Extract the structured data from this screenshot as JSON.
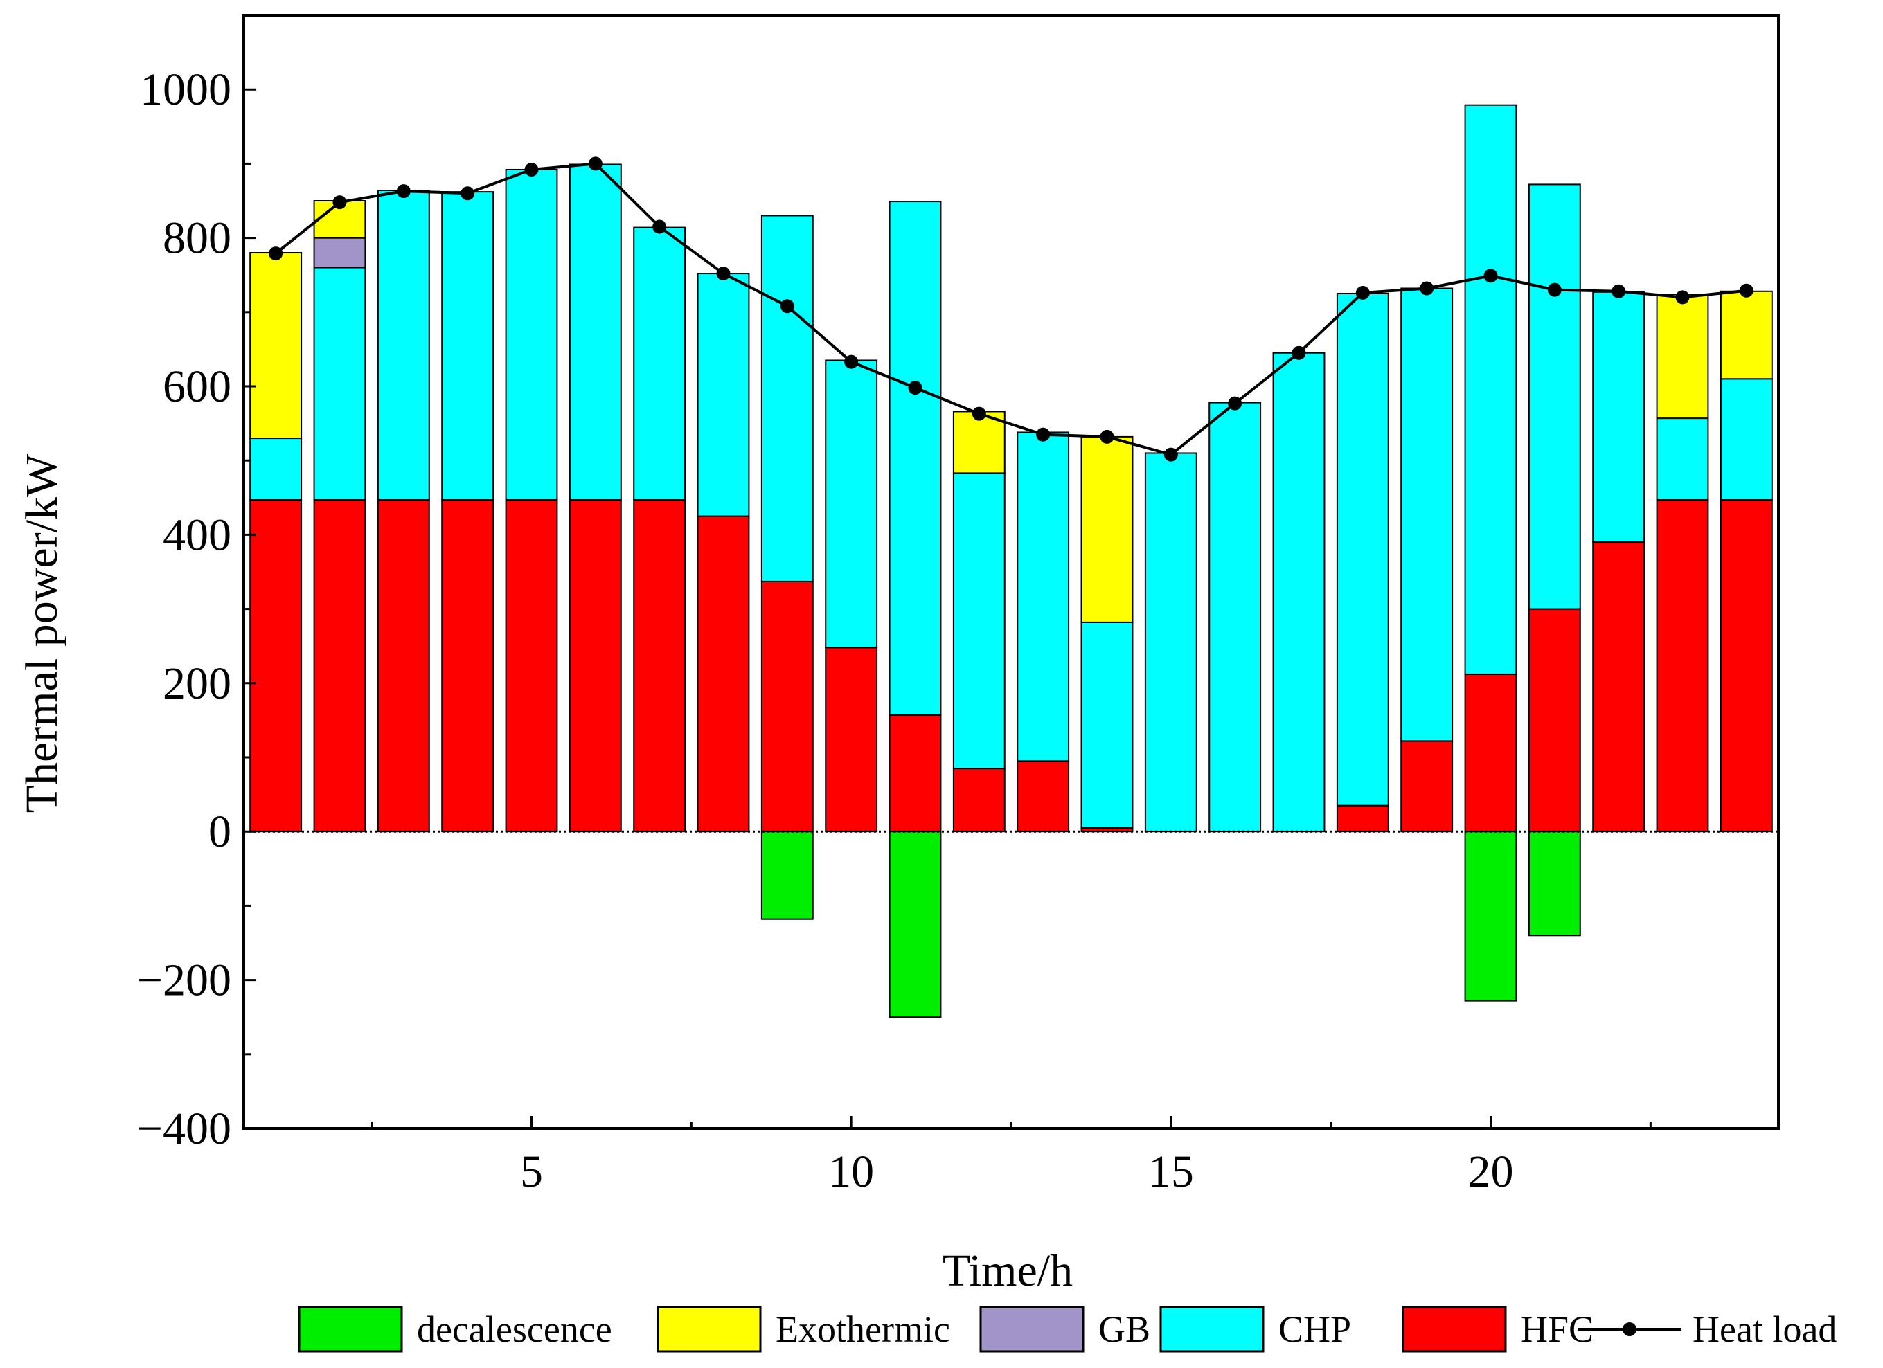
{
  "chart_data": {
    "type": "bar",
    "stacked": true,
    "xlabel": "Time/h",
    "ylabel": "Thermal power/kW",
    "xlim": [
      0.5,
      24.5
    ],
    "ylim": [
      -400,
      1100
    ],
    "x_ticks": [
      5,
      10,
      15,
      20
    ],
    "y_ticks": [
      -400,
      -200,
      0,
      200,
      400,
      600,
      800,
      1000
    ],
    "y_tick_labels": [
      "−400",
      "−200",
      "0",
      "200",
      "400",
      "600",
      "800",
      "1000"
    ],
    "categories": [
      1,
      2,
      3,
      4,
      5,
      6,
      7,
      8,
      9,
      10,
      11,
      12,
      13,
      14,
      15,
      16,
      17,
      18,
      19,
      20,
      21,
      22,
      23,
      24
    ],
    "legend_position": "bottom",
    "series": [
      {
        "name": "decalescence",
        "color": "#00ee00",
        "values": [
          0,
          0,
          0,
          0,
          0,
          0,
          0,
          0,
          -118,
          0,
          -250,
          0,
          0,
          0,
          0,
          0,
          0,
          0,
          0,
          -228,
          -140,
          0,
          0,
          0
        ]
      },
      {
        "name": "Exothermic",
        "color": "#ffff00",
        "values": [
          250,
          50,
          0,
          0,
          0,
          0,
          0,
          0,
          0,
          0,
          0,
          83,
          0,
          250,
          0,
          0,
          0,
          0,
          0,
          0,
          0,
          0,
          167,
          118
        ]
      },
      {
        "name": "GB",
        "color": "#a293c9",
        "values": [
          0,
          40,
          0,
          0,
          0,
          0,
          0,
          0,
          0,
          0,
          0,
          0,
          0,
          0,
          0,
          0,
          0,
          0,
          0,
          0,
          0,
          0,
          0,
          0
        ]
      },
      {
        "name": "CHP",
        "color": "#00ffff",
        "values": [
          83,
          313,
          417,
          415,
          445,
          452,
          367,
          327,
          493,
          387,
          692,
          398,
          443,
          277,
          510,
          578,
          645,
          690,
          610,
          767,
          572,
          337,
          110,
          163
        ]
      },
      {
        "name": "HFC",
        "color": "#ff0000",
        "values": [
          447,
          447,
          447,
          447,
          447,
          447,
          447,
          425,
          337,
          248,
          157,
          85,
          95,
          5,
          0,
          0,
          0,
          35,
          122,
          212,
          300,
          390,
          447,
          447
        ]
      }
    ],
    "line_series": {
      "name": "Heat load",
      "color": "#000000",
      "values": [
        779,
        848,
        863,
        860,
        892,
        900,
        815,
        752,
        708,
        633,
        598,
        563,
        535,
        532,
        508,
        577,
        645,
        726,
        732,
        749,
        730,
        728,
        720,
        729
      ]
    },
    "legend_order": [
      "decalescence",
      "Exothermic",
      "GB",
      "CHP",
      "HFC",
      "Heat load"
    ]
  }
}
